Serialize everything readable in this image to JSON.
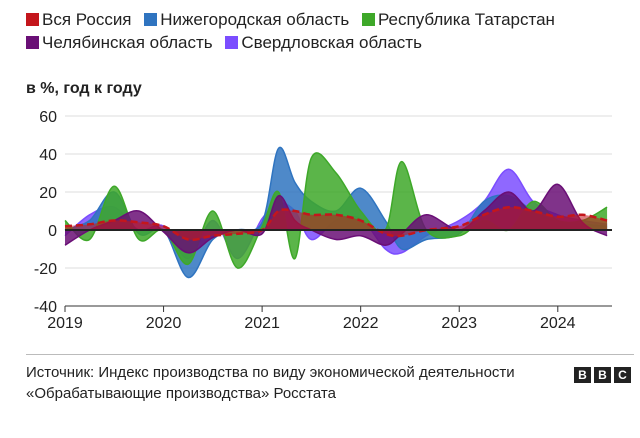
{
  "legend": [
    {
      "name": "Вся Россия",
      "color": "#c4161c"
    },
    {
      "name": "Нижегородская область",
      "color": "#2f74c0"
    },
    {
      "name": "Республика Татарстан",
      "color": "#3ea829"
    },
    {
      "name": "Челябинская область",
      "color": "#6a0f76"
    },
    {
      "name": "Свердловская область",
      "color": "#7b4dff"
    }
  ],
  "ylabel": "в %, год к году",
  "source": "Источник: Индекс производства по виду экономической деятельности «Обрабатывающие производства» Росстата",
  "logo": [
    "B",
    "B",
    "C"
  ],
  "chart_data": {
    "type": "area",
    "ylabel": "в %, год к году",
    "ylim": [
      -40,
      60
    ],
    "yticks": [
      60,
      40,
      20,
      0,
      -20,
      -40
    ],
    "xlim": [
      2019.0,
      2024.55
    ],
    "xticks": [
      "2019",
      "2020",
      "2021",
      "2022",
      "2023",
      "2024"
    ],
    "grid": true,
    "legend_position": "top",
    "x": [
      "2019-01",
      "2019-04",
      "2019-07",
      "2019-10",
      "2020-01",
      "2020-04",
      "2020-07",
      "2020-10",
      "2021-01",
      "2021-03",
      "2021-05",
      "2021-07",
      "2021-10",
      "2022-01",
      "2022-04",
      "2022-06",
      "2022-09",
      "2023-01",
      "2023-04",
      "2023-07",
      "2023-10",
      "2024-01",
      "2024-04",
      "2024-07"
    ],
    "series": [
      {
        "name": "Вся Россия",
        "color": "#c4161c",
        "values": [
          2,
          3,
          5,
          4,
          2,
          -5,
          -3,
          -2,
          0,
          10,
          10,
          8,
          8,
          5,
          -2,
          -3,
          0,
          2,
          8,
          12,
          10,
          7,
          8,
          5
        ]
      },
      {
        "name": "Нижегородская область",
        "color": "#2f74c0",
        "values": [
          0,
          5,
          20,
          -2,
          0,
          -25,
          -5,
          0,
          4,
          43,
          25,
          15,
          10,
          22,
          5,
          -10,
          -5,
          -2,
          15,
          18,
          10,
          4,
          3,
          2
        ]
      },
      {
        "name": "Республика Татарстан",
        "color": "#3ea829",
        "values": [
          5,
          -5,
          23,
          -5,
          0,
          -18,
          10,
          -20,
          2,
          20,
          -15,
          38,
          30,
          10,
          0,
          36,
          0,
          -3,
          5,
          0,
          15,
          5,
          5,
          12
        ]
      },
      {
        "name": "Челябинская область",
        "color": "#6a0f76",
        "values": [
          -8,
          0,
          5,
          10,
          -1,
          -12,
          -4,
          0,
          -2,
          18,
          5,
          0,
          -5,
          -3,
          -8,
          -2,
          8,
          0,
          10,
          20,
          10,
          24,
          4,
          -3
        ]
      },
      {
        "name": "Свердловская область",
        "color": "#7b4dff",
        "values": [
          -3,
          8,
          12,
          0,
          2,
          -15,
          5,
          -15,
          6,
          14,
          10,
          -5,
          5,
          6,
          -10,
          -12,
          -3,
          5,
          15,
          32,
          15,
          8,
          5,
          3
        ]
      }
    ]
  }
}
